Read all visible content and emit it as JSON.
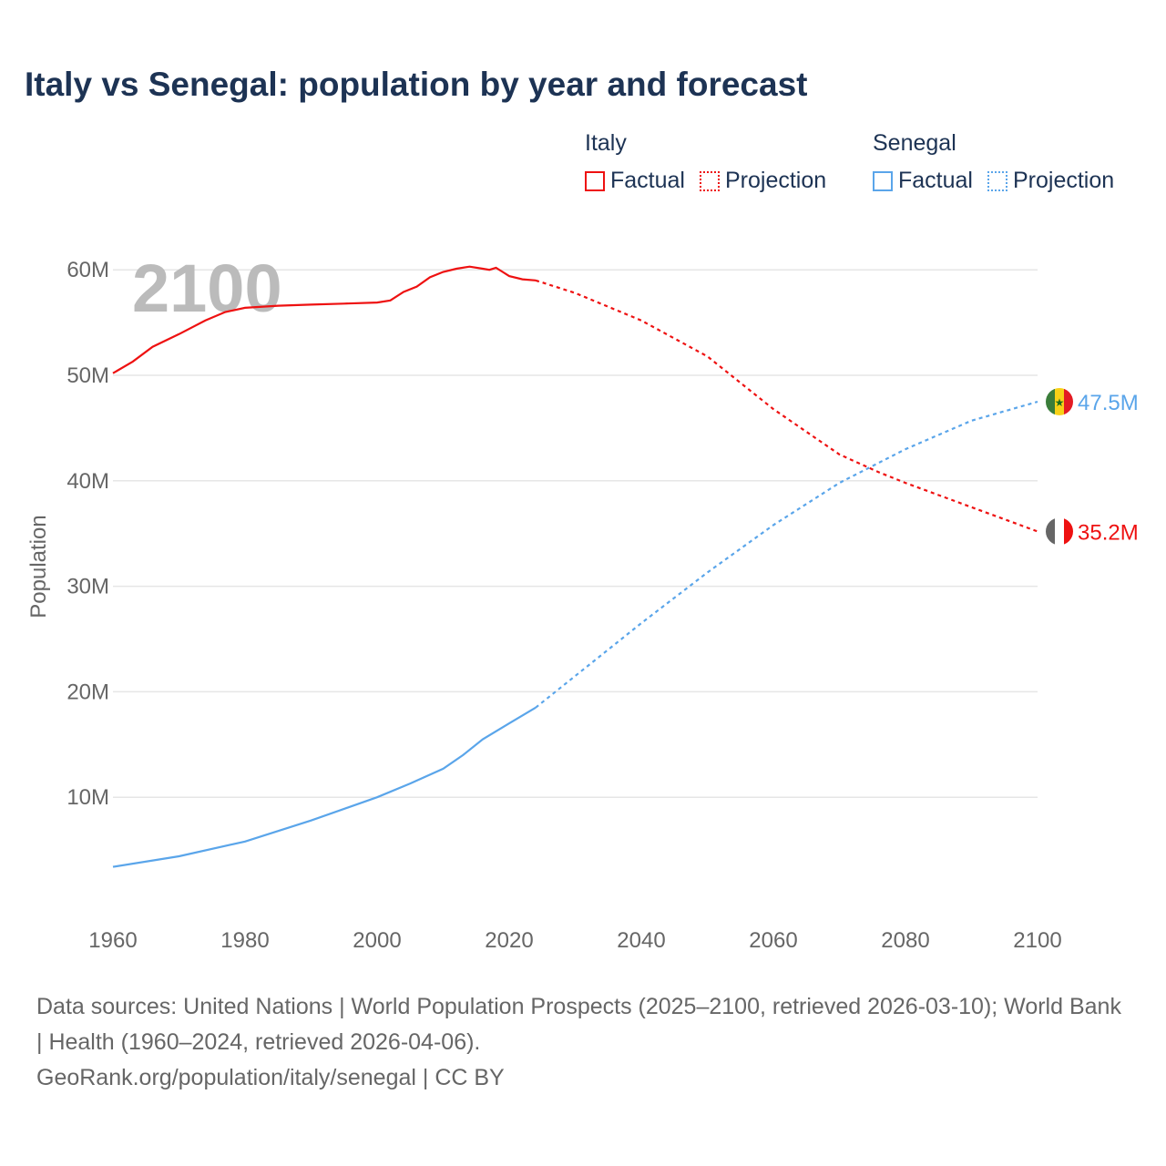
{
  "title": "Italy vs Senegal: population by year and forecast",
  "legend": {
    "groups": [
      {
        "name": "Italy",
        "color": "#ee1111",
        "items": [
          "Factual",
          "Projection"
        ]
      },
      {
        "name": "Senegal",
        "color": "#5aa5ea",
        "items": [
          "Factual",
          "Projection"
        ]
      }
    ]
  },
  "year_overlay": "2100",
  "footer": {
    "sources": "Data sources: United Nations | World Population Prospects (2025–2100, retrieved 2026-03-10); World Bank | Health (1960–2024, retrieved 2026-04-06).",
    "link": "GeoRank.org/population/italy/senegal | CC BY"
  },
  "chart_data": {
    "type": "line",
    "title": "Italy vs Senegal: population by year and forecast",
    "xlabel": "",
    "ylabel": "Population",
    "xlim": [
      1960,
      2100
    ],
    "ylim": [
      0,
      65
    ],
    "x_ticks": [
      "1960",
      "1980",
      "2000",
      "2020",
      "2040",
      "2060",
      "2080",
      "2100"
    ],
    "y_ticks": [
      {
        "value": 10,
        "label": "10M"
      },
      {
        "value": 20,
        "label": "20M"
      },
      {
        "value": 30,
        "label": "30M"
      },
      {
        "value": 40,
        "label": "40M"
      },
      {
        "value": 50,
        "label": "50M"
      },
      {
        "value": 60,
        "label": "60M"
      }
    ],
    "units": "millions",
    "series": [
      {
        "name": "Italy",
        "kind": "Factual",
        "color": "#ee1111",
        "x": [
          1960,
          1963,
          1966,
          1970,
          1974,
          1977,
          1980,
          1985,
          1990,
          1995,
          2000,
          2002,
          2004,
          2006,
          2008,
          2010,
          2012,
          2014,
          2016,
          2017,
          2018,
          2019,
          2020,
          2022,
          2024
        ],
        "y": [
          50.2,
          51.3,
          52.7,
          53.9,
          55.2,
          56.0,
          56.4,
          56.6,
          56.7,
          56.8,
          56.9,
          57.1,
          57.9,
          58.4,
          59.3,
          59.8,
          60.1,
          60.3,
          60.1,
          60.0,
          60.2,
          59.8,
          59.4,
          59.1,
          59.0
        ]
      },
      {
        "name": "Italy",
        "kind": "Projection",
        "color": "#ee1111",
        "x": [
          2024,
          2030,
          2040,
          2050,
          2060,
          2070,
          2076,
          2080,
          2090,
          2100
        ],
        "y": [
          59.0,
          57.8,
          55.2,
          51.8,
          46.8,
          42.5,
          40.8,
          39.8,
          37.5,
          35.2
        ]
      },
      {
        "name": "Senegal",
        "kind": "Factual",
        "color": "#5aa5ea",
        "x": [
          1960,
          1970,
          1980,
          1990,
          2000,
          2005,
          2010,
          2013,
          2016,
          2020,
          2024
        ],
        "y": [
          3.4,
          4.4,
          5.8,
          7.8,
          10.0,
          11.3,
          12.7,
          14.0,
          15.5,
          17.0,
          18.5
        ]
      },
      {
        "name": "Senegal",
        "kind": "Projection",
        "color": "#5aa5ea",
        "x": [
          2024,
          2030,
          2040,
          2050,
          2060,
          2070,
          2080,
          2090,
          2100
        ],
        "y": [
          18.5,
          21.5,
          26.5,
          31.3,
          35.8,
          39.8,
          43.0,
          45.7,
          47.5
        ]
      }
    ],
    "end_labels": [
      {
        "series": "Senegal",
        "label": "47.5M",
        "value": 47.5,
        "color": "#5aa5ea"
      },
      {
        "series": "Italy",
        "label": "35.2M",
        "value": 35.2,
        "color": "#ee1111"
      }
    ],
    "grid": true,
    "legend_position": "top-right"
  }
}
